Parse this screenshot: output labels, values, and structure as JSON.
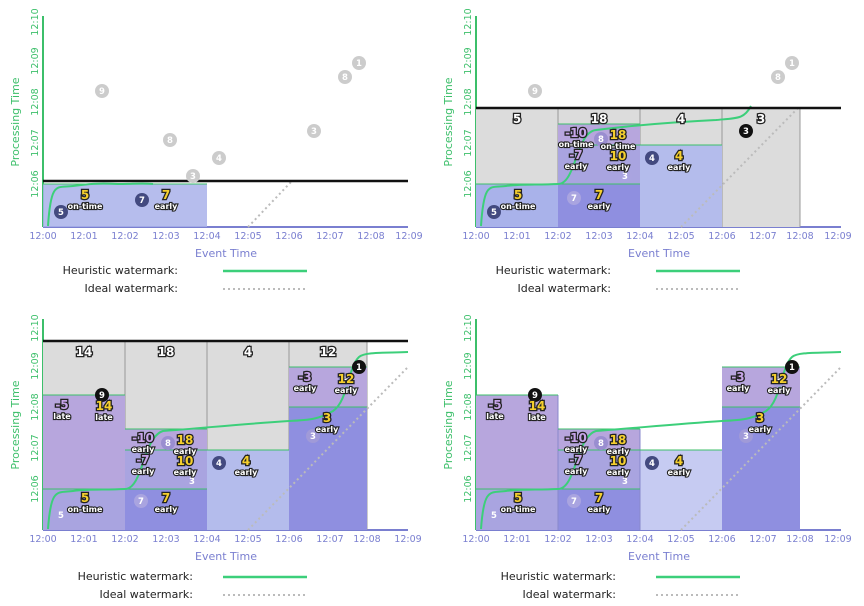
{
  "colors": {
    "axis": "#7a7fd0",
    "processing_axis": "#3cbf6a",
    "heuristic": "#3ccf7a",
    "ideal": "#bbbbbb",
    "watermark_line": "#111111",
    "pane_gray": "#dcdcdc",
    "pane_blue": "#a9b2ea",
    "pane_purple": "#b7a6dd",
    "on_time": "#9aa4e6",
    "result_yellow": "#f5cf2e",
    "result_purple": "#c6a4e8",
    "dot_dark": "#434a80",
    "dot_gray": "#cccccc",
    "dot_black": "#111111"
  },
  "axes": {
    "x_label": "Event Time",
    "y_label": "Processing Time",
    "x_ticks": [
      "12:00",
      "12:01",
      "12:02",
      "12:03",
      "12:04",
      "12:05",
      "12:06",
      "12:07",
      "12:08",
      "12:09"
    ],
    "y_ticks": [
      "12:06",
      "12:07",
      "12:08",
      "12:09",
      "12:10"
    ]
  },
  "legend": {
    "heuristic": "Heuristic watermark:",
    "ideal": "Ideal watermark:"
  },
  "panels": [
    {
      "sums": [],
      "dots": [
        {
          "label": "5",
          "style": "dark"
        },
        {
          "label": "7",
          "style": "dark"
        },
        {
          "label": "3",
          "style": "gray"
        },
        {
          "label": "4",
          "style": "gray"
        },
        {
          "label": "8",
          "style": "gray"
        },
        {
          "label": "3",
          "style": "gray"
        },
        {
          "label": "9",
          "style": "gray"
        },
        {
          "label": "8",
          "style": "gray"
        },
        {
          "label": "1",
          "style": "gray"
        }
      ],
      "results": [
        {
          "num": "5",
          "label": "on-time",
          "color": "yellow"
        },
        {
          "num": "7",
          "label": "early",
          "color": "yellow"
        }
      ]
    },
    {
      "sums": [
        "5",
        "18",
        "4",
        "3"
      ],
      "dots": [
        {
          "label": "5",
          "style": "dark"
        },
        {
          "label": "7",
          "style": "light"
        },
        {
          "label": "8",
          "style": "light"
        },
        {
          "label": "3",
          "style": "light"
        },
        {
          "label": "4",
          "style": "dark"
        },
        {
          "label": "3",
          "style": "black"
        },
        {
          "label": "9",
          "style": "gray"
        },
        {
          "label": "8",
          "style": "gray"
        },
        {
          "label": "1",
          "style": "gray"
        }
      ],
      "results": [
        {
          "num": "5",
          "label": "on-time",
          "color": "yellow"
        },
        {
          "num": "7",
          "label": "early",
          "color": "yellow"
        },
        {
          "num": "-10",
          "label": "on-time",
          "color": "purple"
        },
        {
          "num": "18",
          "label": "on-time",
          "color": "yellow"
        },
        {
          "num": "-7",
          "label": "early",
          "color": "purple"
        },
        {
          "num": "10",
          "label": "early",
          "color": "yellow"
        },
        {
          "num": "4",
          "label": "early",
          "color": "yellow"
        }
      ]
    },
    {
      "sums": [
        "14",
        "18",
        "4",
        "12"
      ],
      "dots": [
        {
          "label": "5",
          "style": "light"
        },
        {
          "label": "7",
          "style": "light"
        },
        {
          "label": "8",
          "style": "light"
        },
        {
          "label": "3",
          "style": "light"
        },
        {
          "label": "4",
          "style": "dark"
        },
        {
          "label": "3",
          "style": "light"
        },
        {
          "label": "9",
          "style": "black"
        },
        {
          "label": "8",
          "style": "light"
        },
        {
          "label": "1",
          "style": "black"
        }
      ],
      "results": [
        {
          "num": "5",
          "label": "on-time",
          "color": "yellow"
        },
        {
          "num": "7",
          "label": "early",
          "color": "yellow"
        },
        {
          "num": "-10",
          "label": "early",
          "color": "purple"
        },
        {
          "num": "18",
          "label": "early",
          "color": "yellow"
        },
        {
          "num": "-7",
          "label": "early",
          "color": "purple"
        },
        {
          "num": "10",
          "label": "early",
          "color": "yellow"
        },
        {
          "num": "4",
          "label": "early",
          "color": "yellow"
        },
        {
          "num": "-5",
          "label": "late",
          "color": "purple"
        },
        {
          "num": "14",
          "label": "late",
          "color": "yellow"
        },
        {
          "num": "-3",
          "label": "early",
          "color": "purple"
        },
        {
          "num": "12",
          "label": "early",
          "color": "yellow"
        },
        {
          "num": "3",
          "label": "early",
          "color": "yellow"
        }
      ]
    },
    {
      "sums": [],
      "dots": [
        {
          "label": "5",
          "style": "light"
        },
        {
          "label": "7",
          "style": "light"
        },
        {
          "label": "8",
          "style": "light"
        },
        {
          "label": "3",
          "style": "light"
        },
        {
          "label": "4",
          "style": "dark"
        },
        {
          "label": "3",
          "style": "light"
        },
        {
          "label": "9",
          "style": "black"
        },
        {
          "label": "8",
          "style": "light"
        },
        {
          "label": "1",
          "style": "black"
        }
      ],
      "results": [
        {
          "num": "5",
          "label": "on-time",
          "color": "yellow"
        },
        {
          "num": "7",
          "label": "early",
          "color": "yellow"
        },
        {
          "num": "-10",
          "label": "early",
          "color": "purple"
        },
        {
          "num": "18",
          "label": "early",
          "color": "yellow"
        },
        {
          "num": "-7",
          "label": "early",
          "color": "purple"
        },
        {
          "num": "10",
          "label": "early",
          "color": "yellow"
        },
        {
          "num": "4",
          "label": "early",
          "color": "yellow"
        },
        {
          "num": "-5",
          "label": "late",
          "color": "purple"
        },
        {
          "num": "14",
          "label": "late",
          "color": "yellow"
        },
        {
          "num": "-3",
          "label": "early",
          "color": "purple"
        },
        {
          "num": "12",
          "label": "early",
          "color": "yellow"
        },
        {
          "num": "3",
          "label": "early",
          "color": "yellow"
        }
      ]
    }
  ]
}
